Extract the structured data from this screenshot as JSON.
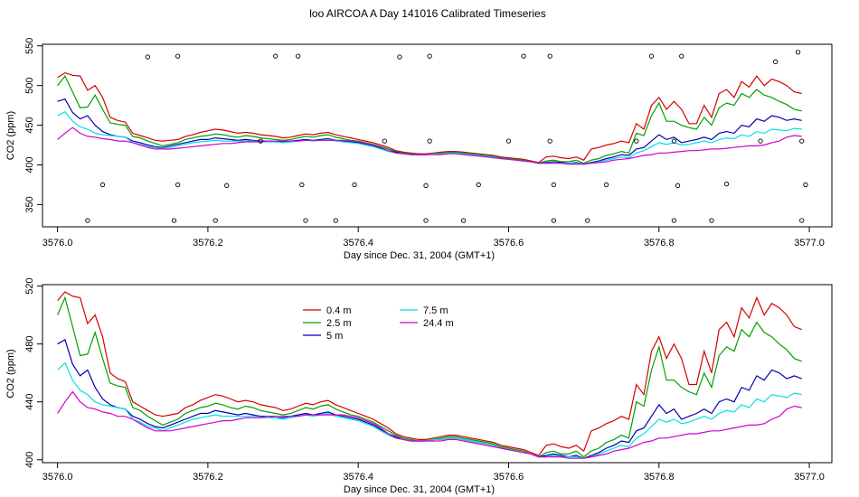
{
  "page_title": "loo AIRCOA A  Day 141016  Calibrated Timeseries",
  "colors": {
    "h04": "#d40000",
    "h25": "#00a000",
    "h5": "#0000b0",
    "h75": "#00e0e0",
    "h244": "#d000d0"
  },
  "chart_data": [
    {
      "type": "line",
      "xlabel": "Day since Dec. 31, 2004 (GMT+1)",
      "ylabel": "CO2 (ppm)",
      "xlim": [
        3575.98,
        3577.03
      ],
      "ylim": [
        322,
        552
      ],
      "xticks": [
        3576.0,
        3576.2,
        3576.4,
        3576.6,
        3576.8,
        3577.0
      ],
      "xtick_labels": [
        "3576.0",
        "3576.2",
        "3576.4",
        "3576.6",
        "3576.8",
        "3577.0"
      ],
      "yticks": [
        350,
        400,
        450,
        500,
        550
      ],
      "ytick_labels": [
        "350",
        "400",
        "450",
        "500",
        "550"
      ],
      "x": [
        3576.0,
        3576.01,
        3576.02,
        3576.03,
        3576.04,
        3576.05,
        3576.06,
        3576.07,
        3576.08,
        3576.09,
        3576.1,
        3576.11,
        3576.12,
        3576.13,
        3576.14,
        3576.15,
        3576.16,
        3576.17,
        3576.18,
        3576.19,
        3576.2,
        3576.21,
        3576.22,
        3576.23,
        3576.24,
        3576.25,
        3576.26,
        3576.27,
        3576.28,
        3576.29,
        3576.3,
        3576.31,
        3576.32,
        3576.33,
        3576.34,
        3576.35,
        3576.36,
        3576.37,
        3576.38,
        3576.39,
        3576.4,
        3576.41,
        3576.42,
        3576.43,
        3576.44,
        3576.45,
        3576.46,
        3576.47,
        3576.48,
        3576.49,
        3576.5,
        3576.51,
        3576.52,
        3576.53,
        3576.54,
        3576.55,
        3576.56,
        3576.57,
        3576.58,
        3576.59,
        3576.6,
        3576.61,
        3576.62,
        3576.63,
        3576.64,
        3576.65,
        3576.66,
        3576.67,
        3576.68,
        3576.69,
        3576.7,
        3576.71,
        3576.72,
        3576.73,
        3576.74,
        3576.75,
        3576.76,
        3576.77,
        3576.78,
        3576.79,
        3576.8,
        3576.81,
        3576.82,
        3576.83,
        3576.84,
        3576.85,
        3576.86,
        3576.87,
        3576.88,
        3576.89,
        3576.9,
        3576.91,
        3576.92,
        3576.93,
        3576.94,
        3576.95,
        3576.96,
        3576.97,
        3576.98,
        3576.99
      ],
      "series": [
        {
          "color_key": "h04",
          "values": [
            510,
            516,
            513,
            512,
            494,
            500,
            485,
            460,
            456,
            454,
            440,
            437,
            434,
            431,
            430,
            431,
            432,
            436,
            438,
            441,
            443,
            445,
            444,
            442,
            440,
            441,
            440,
            438,
            437,
            436,
            434,
            435,
            437,
            439,
            438,
            440,
            441,
            438,
            436,
            434,
            432,
            430,
            428,
            425,
            422,
            418,
            416,
            415,
            414,
            414,
            415,
            416,
            417,
            417,
            416,
            415,
            414,
            413,
            412,
            410,
            409,
            408,
            407,
            405,
            403,
            410,
            411,
            409,
            408,
            410,
            406,
            420,
            422,
            425,
            427,
            430,
            428,
            452,
            445,
            475,
            485,
            470,
            480,
            470,
            452,
            452,
            475,
            460,
            490,
            495,
            485,
            505,
            498,
            512,
            500,
            508,
            505,
            500,
            492,
            490
          ]
        },
        {
          "color_key": "h25",
          "values": [
            500,
            512,
            492,
            472,
            473,
            488,
            470,
            453,
            451,
            450,
            436,
            434,
            430,
            427,
            424,
            426,
            428,
            432,
            434,
            436,
            437,
            439,
            438,
            436,
            435,
            437,
            436,
            434,
            433,
            432,
            431,
            432,
            434,
            436,
            435,
            437,
            438,
            435,
            433,
            431,
            430,
            428,
            426,
            423,
            420,
            417,
            415,
            414,
            413,
            413,
            414,
            415,
            416,
            416,
            415,
            414,
            413,
            412,
            411,
            409,
            408,
            407,
            406,
            404,
            402,
            405,
            406,
            404,
            404,
            406,
            402,
            406,
            408,
            412,
            414,
            417,
            415,
            440,
            437,
            462,
            478,
            455,
            455,
            450,
            447,
            445,
            460,
            450,
            472,
            478,
            475,
            490,
            485,
            495,
            488,
            485,
            480,
            476,
            470,
            468
          ]
        },
        {
          "color_key": "h5",
          "values": [
            480,
            483,
            466,
            458,
            462,
            450,
            442,
            438,
            436,
            435,
            430,
            428,
            425,
            423,
            422,
            424,
            426,
            428,
            430,
            432,
            432,
            434,
            433,
            432,
            431,
            432,
            431,
            430,
            430,
            429,
            429,
            430,
            431,
            432,
            431,
            432,
            433,
            431,
            430,
            429,
            428,
            426,
            424,
            421,
            418,
            416,
            414,
            413,
            413,
            413,
            414,
            414,
            415,
            415,
            414,
            413,
            412,
            411,
            410,
            408,
            407,
            406,
            405,
            404,
            402,
            403,
            404,
            403,
            402,
            403,
            401,
            403,
            405,
            408,
            410,
            413,
            412,
            420,
            422,
            430,
            438,
            432,
            435,
            428,
            430,
            432,
            435,
            432,
            440,
            442,
            440,
            450,
            448,
            458,
            455,
            462,
            460,
            456,
            458,
            456
          ]
        },
        {
          "color_key": "h75",
          "values": [
            462,
            467,
            455,
            448,
            445,
            440,
            438,
            437,
            436,
            435,
            428,
            426,
            423,
            422,
            420,
            422,
            424,
            426,
            428,
            429,
            430,
            431,
            430,
            430,
            430,
            430,
            430,
            429,
            429,
            429,
            428,
            429,
            430,
            431,
            430,
            431,
            432,
            430,
            429,
            428,
            427,
            425,
            423,
            420,
            417,
            415,
            414,
            413,
            413,
            413,
            414,
            414,
            415,
            415,
            414,
            413,
            412,
            411,
            410,
            408,
            407,
            406,
            405,
            404,
            402,
            402,
            403,
            402,
            402,
            402,
            401,
            402,
            404,
            406,
            408,
            410,
            409,
            415,
            418,
            423,
            428,
            426,
            428,
            425,
            426,
            428,
            430,
            428,
            432,
            434,
            433,
            438,
            436,
            442,
            440,
            445,
            444,
            443,
            446,
            445
          ]
        },
        {
          "color_key": "h244",
          "values": [
            432,
            440,
            447,
            440,
            436,
            435,
            433,
            432,
            430,
            430,
            428,
            425,
            422,
            420,
            420,
            420,
            421,
            422,
            423,
            424,
            425,
            426,
            427,
            427,
            428,
            429,
            429,
            429,
            430,
            430,
            430,
            430,
            430,
            431,
            431,
            431,
            431,
            431,
            431,
            430,
            429,
            427,
            425,
            422,
            418,
            415,
            414,
            413,
            413,
            413,
            413,
            413,
            414,
            414,
            413,
            412,
            411,
            410,
            409,
            408,
            407,
            406,
            405,
            404,
            402,
            402,
            402,
            402,
            401,
            401,
            401,
            402,
            403,
            404,
            406,
            407,
            408,
            410,
            412,
            413,
            415,
            415,
            416,
            417,
            418,
            418,
            419,
            420,
            420,
            421,
            422,
            423,
            424,
            424,
            425,
            428,
            430,
            435,
            437,
            436
          ]
        }
      ],
      "scatter_markers": {
        "x": [
          3576.04,
          3576.06,
          3576.12,
          3576.155,
          3576.16,
          3576.16,
          3576.21,
          3576.225,
          3576.27,
          3576.29,
          3576.32,
          3576.325,
          3576.33,
          3576.37,
          3576.395,
          3576.435,
          3576.455,
          3576.49,
          3576.49,
          3576.495,
          3576.495,
          3576.54,
          3576.56,
          3576.6,
          3576.62,
          3576.655,
          3576.655,
          3576.66,
          3576.66,
          3576.705,
          3576.73,
          3576.77,
          3576.79,
          3576.82,
          3576.825,
          3576.82,
          3576.83,
          3576.87,
          3576.89,
          3576.935,
          3576.955,
          3576.985,
          3576.99,
          3576.995,
          3576.99
        ],
        "y": [
          330,
          375,
          536,
          330,
          375,
          537,
          330,
          374,
          430,
          537,
          537,
          375,
          330,
          330,
          375,
          430,
          536,
          330,
          374,
          430,
          537,
          330,
          375,
          430,
          537,
          430,
          537,
          375,
          330,
          330,
          375,
          430,
          537,
          330,
          374,
          430,
          537,
          330,
          376,
          430,
          530,
          542,
          430,
          375,
          330
        ]
      }
    },
    {
      "type": "line",
      "xlabel": "Day since Dec. 31, 2004 (GMT+1)",
      "ylabel": "CO2 (ppm)",
      "xlim": [
        3575.98,
        3577.03
      ],
      "ylim": [
        398,
        521
      ],
      "xticks": [
        3576.0,
        3576.2,
        3576.4,
        3576.6,
        3576.8,
        3577.0
      ],
      "xtick_labels": [
        "3576.0",
        "3576.2",
        "3576.4",
        "3576.6",
        "3576.8",
        "3577.0"
      ],
      "yticks": [
        400,
        440,
        480,
        520
      ],
      "ytick_labels": [
        "400",
        "440",
        "480",
        "520"
      ],
      "legend": {
        "placement": "top-center",
        "entries": [
          {
            "name": "0.4 m",
            "color_key": "h04"
          },
          {
            "name": "2.5 m",
            "color_key": "h25"
          },
          {
            "name": "5 m",
            "color_key": "h5"
          },
          {
            "name": "7.5 m",
            "color_key": "h75"
          },
          {
            "name": "24.4 m",
            "color_key": "h244"
          }
        ]
      },
      "series_ref": "same_as_top"
    }
  ]
}
